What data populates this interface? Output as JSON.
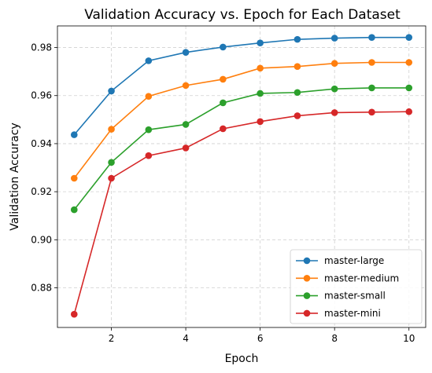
{
  "chart_data": {
    "type": "line",
    "title": "Validation Accuracy vs. Epoch for Each Dataset",
    "xlabel": "Epoch",
    "ylabel": "Validation Accuracy",
    "x": [
      1,
      2,
      3,
      4,
      5,
      6,
      7,
      8,
      9,
      10
    ],
    "xlim": [
      0.55,
      10.45
    ],
    "ylim": [
      0.8635,
      0.989
    ],
    "xticks": [
      2,
      4,
      6,
      8,
      10
    ],
    "yticks": [
      0.88,
      0.9,
      0.92,
      0.94,
      0.96,
      0.98
    ],
    "grid": true,
    "legend_position": "lower-right",
    "series": [
      {
        "name": "master-large",
        "color": "#1f77b4",
        "values": [
          0.9437,
          0.9619,
          0.9745,
          0.978,
          0.9802,
          0.9819,
          0.9834,
          0.9839,
          0.9842,
          0.9842
        ]
      },
      {
        "name": "master-medium",
        "color": "#ff7f0e",
        "values": [
          0.9256,
          0.946,
          0.9597,
          0.9642,
          0.9668,
          0.9714,
          0.9721,
          0.9734,
          0.9738,
          0.9738
        ]
      },
      {
        "name": "master-small",
        "color": "#2ca02c",
        "values": [
          0.9125,
          0.9322,
          0.9458,
          0.948,
          0.957,
          0.9609,
          0.9613,
          0.9628,
          0.9632,
          0.9632
        ]
      },
      {
        "name": "master-mini",
        "color": "#d62728",
        "values": [
          0.869,
          0.9256,
          0.935,
          0.9382,
          0.9462,
          0.9492,
          0.9516,
          0.9529,
          0.9531,
          0.9533
        ]
      }
    ]
  }
}
